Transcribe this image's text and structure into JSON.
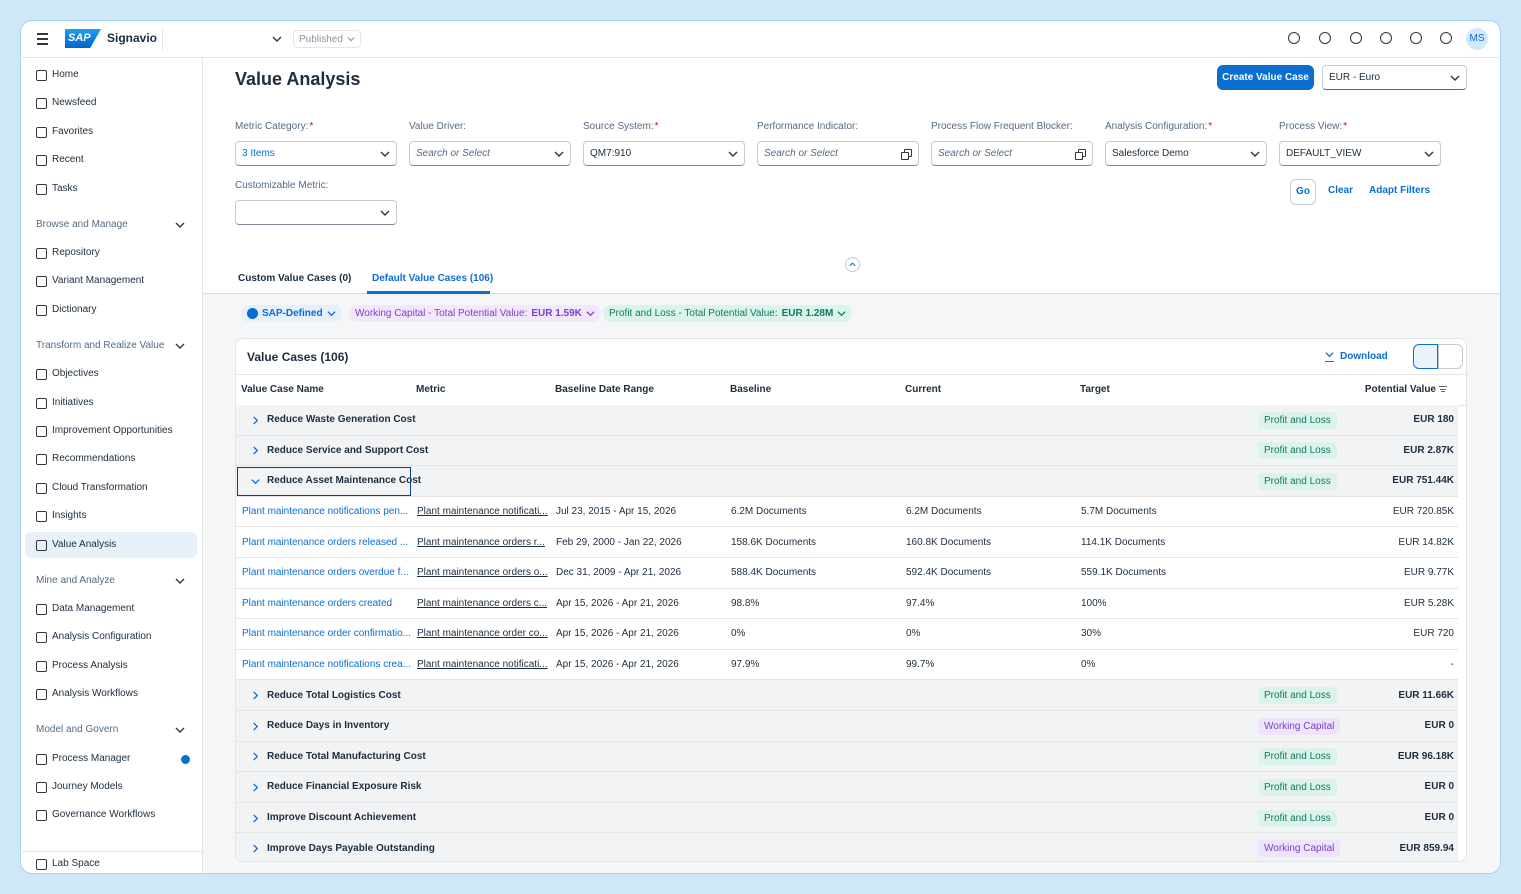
{
  "topbar": {
    "logo": "SAP",
    "product": "Signavio",
    "status": "Published",
    "avatar": "MS"
  },
  "sidebar": {
    "items": [
      "Home",
      "Newsfeed",
      "Favorites",
      "Recent",
      "Tasks"
    ],
    "groups": [
      {
        "title": "Browse and Manage",
        "items": [
          "Repository",
          "Variant Management",
          "Dictionary"
        ]
      },
      {
        "title": "Transform and Realize Value",
        "items": [
          "Objectives",
          "Initiatives",
          "Improvement Opportunities",
          "Recommendations",
          "Cloud Transformation",
          "Insights",
          "Value Analysis"
        ]
      },
      {
        "title": "Mine and Analyze",
        "items": [
          "Data Management",
          "Analysis Configuration",
          "Process Analysis",
          "Analysis Workflows"
        ]
      },
      {
        "title": "Model and Govern",
        "items": [
          "Process Manager",
          "Journey Models",
          "Governance Workflows"
        ]
      }
    ],
    "footer": "Lab Space"
  },
  "page": {
    "title": "Value Analysis",
    "create_button": "Create Value Case",
    "currency": "EUR - Euro"
  },
  "filters": [
    {
      "label": "Metric Category:",
      "required": "*",
      "value": "3 Items",
      "value_color": "#0a6ed1",
      "control": "select"
    },
    {
      "label": "Value Driver:",
      "placeholder": "Search or Select",
      "control": "select"
    },
    {
      "label": "Source System:",
      "required": "*",
      "value": "QM7:910",
      "control": "select"
    },
    {
      "label": "Performance Indicator:",
      "placeholder": "Search or Select",
      "control": "value-help"
    },
    {
      "label": "Process Flow Frequent Blocker:",
      "placeholder": "Search or Select",
      "control": "value-help"
    },
    {
      "label": "Analysis Configuration:",
      "required": "*",
      "value": "Salesforce Demo",
      "control": "select"
    },
    {
      "label": "Process View:",
      "required": "*",
      "value": "DEFAULT_VIEW",
      "control": "select"
    },
    {
      "label": "Customizable Metric:",
      "control": "select"
    }
  ],
  "filter_actions": [
    "Go",
    "Clear",
    "Adapt Filters"
  ],
  "tabs": [
    {
      "label": "Custom Value Cases (0)"
    },
    {
      "label": "Default Value Cases (106)",
      "selected": true
    }
  ],
  "chips": [
    {
      "label": "SAP-Defined",
      "color": "#0a6ed1",
      "background": "#e5f0fb"
    },
    {
      "label": "Working Capital - Total Potential Value:",
      "value": "EUR 1.59K",
      "color": "#7b3fc8",
      "background": "#f1e8fc"
    },
    {
      "label": "Profit and Loss - Total Potential Value:",
      "value": "EUR 1.28M",
      "color": "#0f7a63",
      "background": "#dcf3ec"
    }
  ],
  "table": {
    "title": "Value Cases (106)",
    "download": "Download",
    "columns": [
      "Value Case Name",
      "Metric",
      "Baseline Date Range",
      "Baseline",
      "Current",
      "Target",
      "Potential Value"
    ],
    "rows": [
      {
        "name": "Reduce Waste Generation Cost",
        "tag": "Profit and Loss",
        "tag_color": "#0f7a63",
        "tag_background": "#dcf3ec",
        "value": "EUR 180"
      },
      {
        "name": "Reduce Service and Support Cost",
        "tag": "Profit and Loss",
        "tag_color": "#0f7a63",
        "tag_background": "#dcf3ec",
        "value": "EUR 2.87K"
      },
      {
        "name": "Reduce Asset Maintenance Cost",
        "tag": "Profit and Loss",
        "tag_color": "#0f7a63",
        "tag_background": "#dcf3ec",
        "value": "EUR 751.44K",
        "expanded": true,
        "children": [
          [
            "Plant maintenance notifications pen...",
            "Plant maintenance notificati...",
            "Jul 23, 2015 - Apr 15, 2026",
            "6.2M Documents",
            "6.2M Documents",
            "5.7M Documents",
            "EUR 720.85K"
          ],
          [
            "Plant maintenance orders released ...",
            "Plant maintenance orders r...",
            "Feb 29, 2000 - Jan 22, 2026",
            "158.6K Documents",
            "160.8K Documents",
            "114.1K Documents",
            "EUR 14.82K"
          ],
          [
            "Plant maintenance orders overdue f...",
            "Plant maintenance orders o...",
            "Dec 31, 2009 - Apr 21, 2026",
            "588.4K Documents",
            "592.4K Documents",
            "559.1K Documents",
            "EUR 9.77K"
          ],
          [
            "Plant maintenance orders created",
            "Plant maintenance orders c...",
            "Apr 15, 2026 - Apr 21, 2026",
            "98.8%",
            "97.4%",
            "100%",
            "EUR 5.28K"
          ],
          [
            "Plant maintenance order confirmatio...",
            "Plant maintenance order co...",
            "Apr 15, 2026 - Apr 21, 2026",
            "0%",
            "0%",
            "30%",
            "EUR 720"
          ],
          [
            "Plant maintenance notifications crea...",
            "Plant maintenance notificati...",
            "Apr 15, 2026 - Apr 21, 2026",
            "97.9%",
            "99.7%",
            "0%",
            "-"
          ]
        ]
      },
      {
        "name": "Reduce Total Logistics Cost",
        "tag": "Profit and Loss",
        "tag_color": "#0f7a63",
        "tag_background": "#dcf3ec",
        "value": "EUR 11.66K"
      },
      {
        "name": "Reduce Days in Inventory",
        "tag": "Working Capital",
        "tag_color": "#7b3fc8",
        "tag_background": "#efe5fb",
        "value": "EUR 0"
      },
      {
        "name": "Reduce Total Manufacturing Cost",
        "tag": "Profit and Loss",
        "tag_color": "#0f7a63",
        "tag_background": "#dcf3ec",
        "value": "EUR 96.18K"
      },
      {
        "name": "Reduce Financial Exposure Risk",
        "tag": "Profit and Loss",
        "tag_color": "#0f7a63",
        "tag_background": "#dcf3ec",
        "value": "EUR 0"
      },
      {
        "name": "Improve Discount Achievement",
        "tag": "Profit and Loss",
        "tag_color": "#0f7a63",
        "tag_background": "#dcf3ec",
        "value": "EUR 0"
      },
      {
        "name": "Improve Days Payable Outstanding",
        "tag": "Working Capital",
        "tag_color": "#7b3fc8",
        "tag_background": "#efe5fb",
        "value": "EUR 859.94"
      }
    ]
  }
}
